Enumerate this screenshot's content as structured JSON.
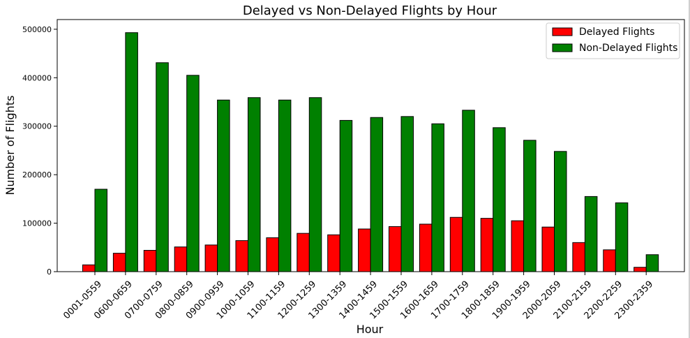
{
  "chart_data": {
    "type": "bar",
    "title": "Delayed vs Non-Delayed Flights by Hour",
    "xlabel": "Hour",
    "ylabel": "Number of Flights",
    "ylim": [
      0,
      520000
    ],
    "yticks": [
      0,
      100000,
      200000,
      300000,
      400000,
      500000
    ],
    "ytick_labels": [
      "0",
      "100000",
      "200000",
      "300000",
      "400000",
      "500000"
    ],
    "categories": [
      "0001-0559",
      "0600-0659",
      "0700-0759",
      "0800-0859",
      "0900-0959",
      "1000-1059",
      "1100-1159",
      "1200-1259",
      "1300-1359",
      "1400-1459",
      "1500-1559",
      "1600-1659",
      "1700-1759",
      "1800-1859",
      "1900-1959",
      "2000-2059",
      "2100-2159",
      "2200-2259",
      "2300-2359"
    ],
    "series": [
      {
        "name": "Delayed Flights",
        "color": "#ff0000",
        "values": [
          14000,
          38000,
          44000,
          51000,
          55000,
          64000,
          70000,
          79000,
          76000,
          88000,
          93000,
          98000,
          112000,
          110000,
          105000,
          92000,
          60000,
          45000,
          9000
        ]
      },
      {
        "name": "Non-Delayed Flights",
        "color": "#008000",
        "values": [
          170000,
          493000,
          431000,
          405000,
          354000,
          359000,
          354000,
          359000,
          312000,
          318000,
          320000,
          305000,
          333000,
          297000,
          271000,
          248000,
          155000,
          142000,
          35000
        ]
      }
    ],
    "grid": false,
    "legend": "top-right"
  }
}
